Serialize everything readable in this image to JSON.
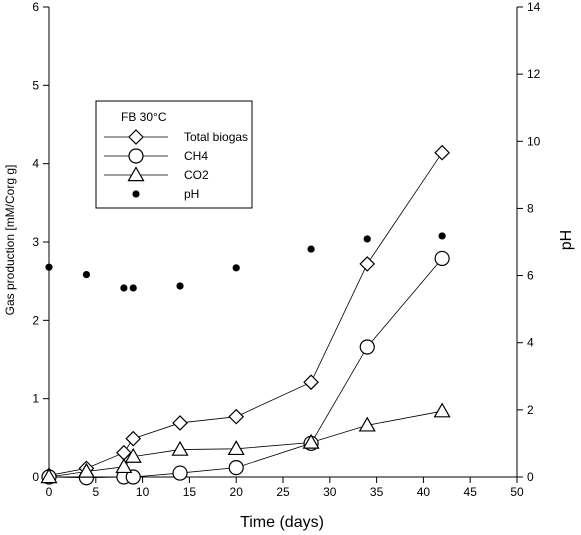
{
  "chart_data": {
    "type": "line",
    "title": "",
    "xlabel": "Time (days)",
    "ylabel": "Gas production [mM/Corg g]",
    "y2label": "pH",
    "xlim": [
      0,
      50
    ],
    "ylim": [
      0,
      6
    ],
    "y2lim": [
      0,
      14
    ],
    "xticks": [
      "0",
      "5",
      "10",
      "15",
      "20",
      "25",
      "30",
      "35",
      "40",
      "45",
      "50"
    ],
    "yticks": [
      "0",
      "1",
      "2",
      "3",
      "4",
      "5",
      "6"
    ],
    "y2ticks": [
      "0",
      "2",
      "4",
      "6",
      "8",
      "10",
      "12",
      "14"
    ],
    "grid": false,
    "legend_title": "FB 30°C",
    "legend_position": "upper-left",
    "series": [
      {
        "name": "Total biogas",
        "marker": "diamond",
        "axis": "left",
        "x": [
          0,
          4,
          8,
          9,
          14,
          20,
          28,
          34,
          42
        ],
        "y": [
          0.02,
          0.11,
          0.31,
          0.49,
          0.69,
          0.77,
          1.21,
          2.72,
          4.14
        ]
      },
      {
        "name": "CH4",
        "marker": "circle",
        "axis": "left",
        "x": [
          0,
          4,
          8,
          9,
          14,
          20,
          28,
          34,
          42
        ],
        "y": [
          0.0,
          -0.01,
          0.0,
          0.0,
          0.05,
          0.12,
          0.43,
          1.66,
          2.79
        ]
      },
      {
        "name": "CO2",
        "marker": "triangle",
        "axis": "left",
        "x": [
          0,
          4,
          8,
          9,
          14,
          20,
          28,
          34,
          42
        ],
        "y": [
          0.0,
          0.07,
          0.13,
          0.26,
          0.35,
          0.36,
          0.44,
          0.66,
          0.84
        ]
      },
      {
        "name": "pH",
        "marker": "filled-dot",
        "axis": "right",
        "x": [
          0,
          4,
          8,
          9,
          14,
          20,
          28,
          34,
          42
        ],
        "y": [
          6.25,
          6.03,
          5.63,
          5.63,
          5.69,
          6.23,
          6.79,
          7.09,
          7.18
        ]
      }
    ]
  }
}
